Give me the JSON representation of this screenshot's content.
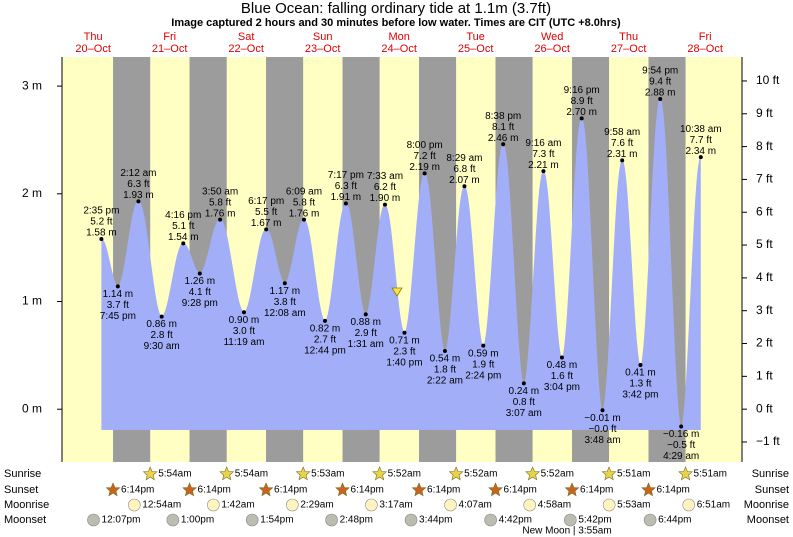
{
  "chart_data": {
    "type": "area",
    "title": "Blue Ocean: falling  ordinary tide at 1.1m (3.7ft)",
    "subtitle": "Image captured 2 hours and 30 minutes before low water. Times are CIT (UTC +8.0hrs)",
    "color": "#a2aff8",
    "night_color": "#9c9c9c",
    "day_color": "#ffffc4",
    "categories": [
      "Thu",
      "Fri",
      "Sat",
      "Sun",
      "Mon",
      "Tue",
      "Wed",
      "Thu",
      "Fri"
    ],
    "dates": [
      "20–Oct",
      "21–Oct",
      "22–Oct",
      "23–Oct",
      "24–Oct",
      "25–Oct",
      "26–Oct",
      "27–Oct",
      "28–Oct"
    ],
    "x": [
      "2:35 pm",
      "7:45 pm",
      "2:12 am",
      "9:30 am",
      "4:16 pm",
      "9:28 pm",
      "3:50 am",
      "11:19 am",
      "6:17 pm",
      "12:08 am",
      "6:09 am",
      "12:44 pm",
      "7:17 pm",
      "1:31 am",
      "7:33 am",
      "1:40 pm",
      "8:00 pm",
      "2:22 am",
      "8:29 am",
      "2:24 pm",
      "8:38 pm",
      "3:07 am",
      "9:16 am",
      "3:04 pm",
      "9:16 pm",
      "3:48 am",
      "9:58 am",
      "3:42 pm",
      "9:54 pm",
      "4:29 am",
      "10:38 am"
    ],
    "values": [
      1.58,
      1.14,
      1.93,
      0.86,
      1.54,
      1.26,
      1.76,
      0.9,
      1.67,
      1.17,
      1.76,
      0.82,
      1.91,
      0.88,
      1.9,
      0.71,
      2.19,
      0.54,
      2.07,
      0.59,
      2.46,
      0.24,
      2.21,
      0.48,
      2.7,
      -0.01,
      2.31,
      0.41,
      2.88,
      -0.16,
      2.34
    ],
    "value_labels": [
      "1.58 m",
      "1.14 m",
      "1.93 m",
      "0.86 m",
      "1.54 m",
      "1.26 m",
      "1.76 m",
      "0.90 m",
      "1.67 m",
      "1.17 m",
      "1.76 m",
      "0.82 m",
      "1.91 m",
      "0.88 m",
      "1.90 m",
      "0.71 m",
      "2.19 m",
      "0.54 m",
      "2.07 m",
      "0.59 m",
      "2.46 m",
      "0.24 m",
      "2.21 m",
      "0.48 m",
      "2.70 m",
      "−0.01 m",
      "2.31 m",
      "0.41 m",
      "2.88 m",
      "−0.16 m",
      "2.34 m"
    ],
    "values_ft": [
      5.2,
      3.7,
      6.3,
      2.8,
      5.1,
      4.1,
      5.8,
      3.0,
      5.5,
      3.8,
      5.8,
      2.7,
      6.3,
      2.9,
      6.2,
      2.3,
      7.2,
      1.8,
      6.8,
      1.9,
      8.1,
      0.8,
      7.3,
      1.6,
      8.9,
      -0.0,
      7.6,
      1.3,
      9.4,
      -0.5,
      7.7
    ],
    "value_labels_ft": [
      "5.2 ft",
      "3.7 ft",
      "6.3 ft",
      "2.8 ft",
      "5.1 ft",
      "4.1 ft",
      "5.8 ft",
      "3.0 ft",
      "5.5 ft",
      "3.8 ft",
      "5.8 ft",
      "2.7 ft",
      "6.3 ft",
      "2.9 ft",
      "6.2 ft",
      "2.3 ft",
      "7.2 ft",
      "1.8 ft",
      "6.8 ft",
      "1.9 ft",
      "8.1 ft",
      "0.8 ft",
      "7.3 ft",
      "1.6 ft",
      "8.9 ft",
      "−0.0 ft",
      "7.6 ft",
      "1.3 ft",
      "9.4 ft",
      "−0.5 ft",
      "7.7 ft"
    ],
    "ylim": [
      -0.49,
      3.27
    ],
    "yticks": [
      {
        "value": 0,
        "label": "0 m"
      },
      {
        "value": 1,
        "label": "1 m"
      },
      {
        "value": 2,
        "label": "2 m"
      },
      {
        "value": 3,
        "label": "3 m"
      }
    ],
    "y2lim": [
      -1.61,
      10.73
    ],
    "y2ticks": [
      {
        "value": -1,
        "label": "−1 ft"
      },
      {
        "value": 0,
        "label": "0 ft"
      },
      {
        "value": 1,
        "label": "1 ft"
      },
      {
        "value": 2,
        "label": "2 ft"
      },
      {
        "value": 3,
        "label": "3 ft"
      },
      {
        "value": 4,
        "label": "4 ft"
      },
      {
        "value": 5,
        "label": "5 ft"
      },
      {
        "value": 6,
        "label": "6 ft"
      },
      {
        "value": 7,
        "label": "7 ft"
      },
      {
        "value": 8,
        "label": "8 ft"
      },
      {
        "value": 9,
        "label": "9 ft"
      },
      {
        "value": 10,
        "label": "10 ft"
      }
    ],
    "events": {
      "labels": [
        "Sunrise",
        "Sunset",
        "Moonrise",
        "Moonset"
      ],
      "sunrise": [
        null,
        "5:54am",
        "5:54am",
        "5:53am",
        "5:52am",
        "5:52am",
        "5:52am",
        "5:51am",
        "5:51am"
      ],
      "sunset": [
        "6:14pm",
        "6:14pm",
        "6:14pm",
        "6:14pm",
        "6:14pm",
        "6:14pm",
        "6:14pm",
        "6:14pm",
        null
      ],
      "moonrise": [
        null,
        "12:54am",
        "1:42am",
        "2:29am",
        "3:17am",
        "4:07am",
        "4:58am",
        "5:53am",
        "6:51am"
      ],
      "moonset": [
        "12:07pm",
        "1:00pm",
        "1:54pm",
        "2:48pm",
        "3:44pm",
        "4:42pm",
        "5:42pm",
        "6:44pm",
        null
      ]
    },
    "annotation": "New Moon | 3:55am"
  }
}
